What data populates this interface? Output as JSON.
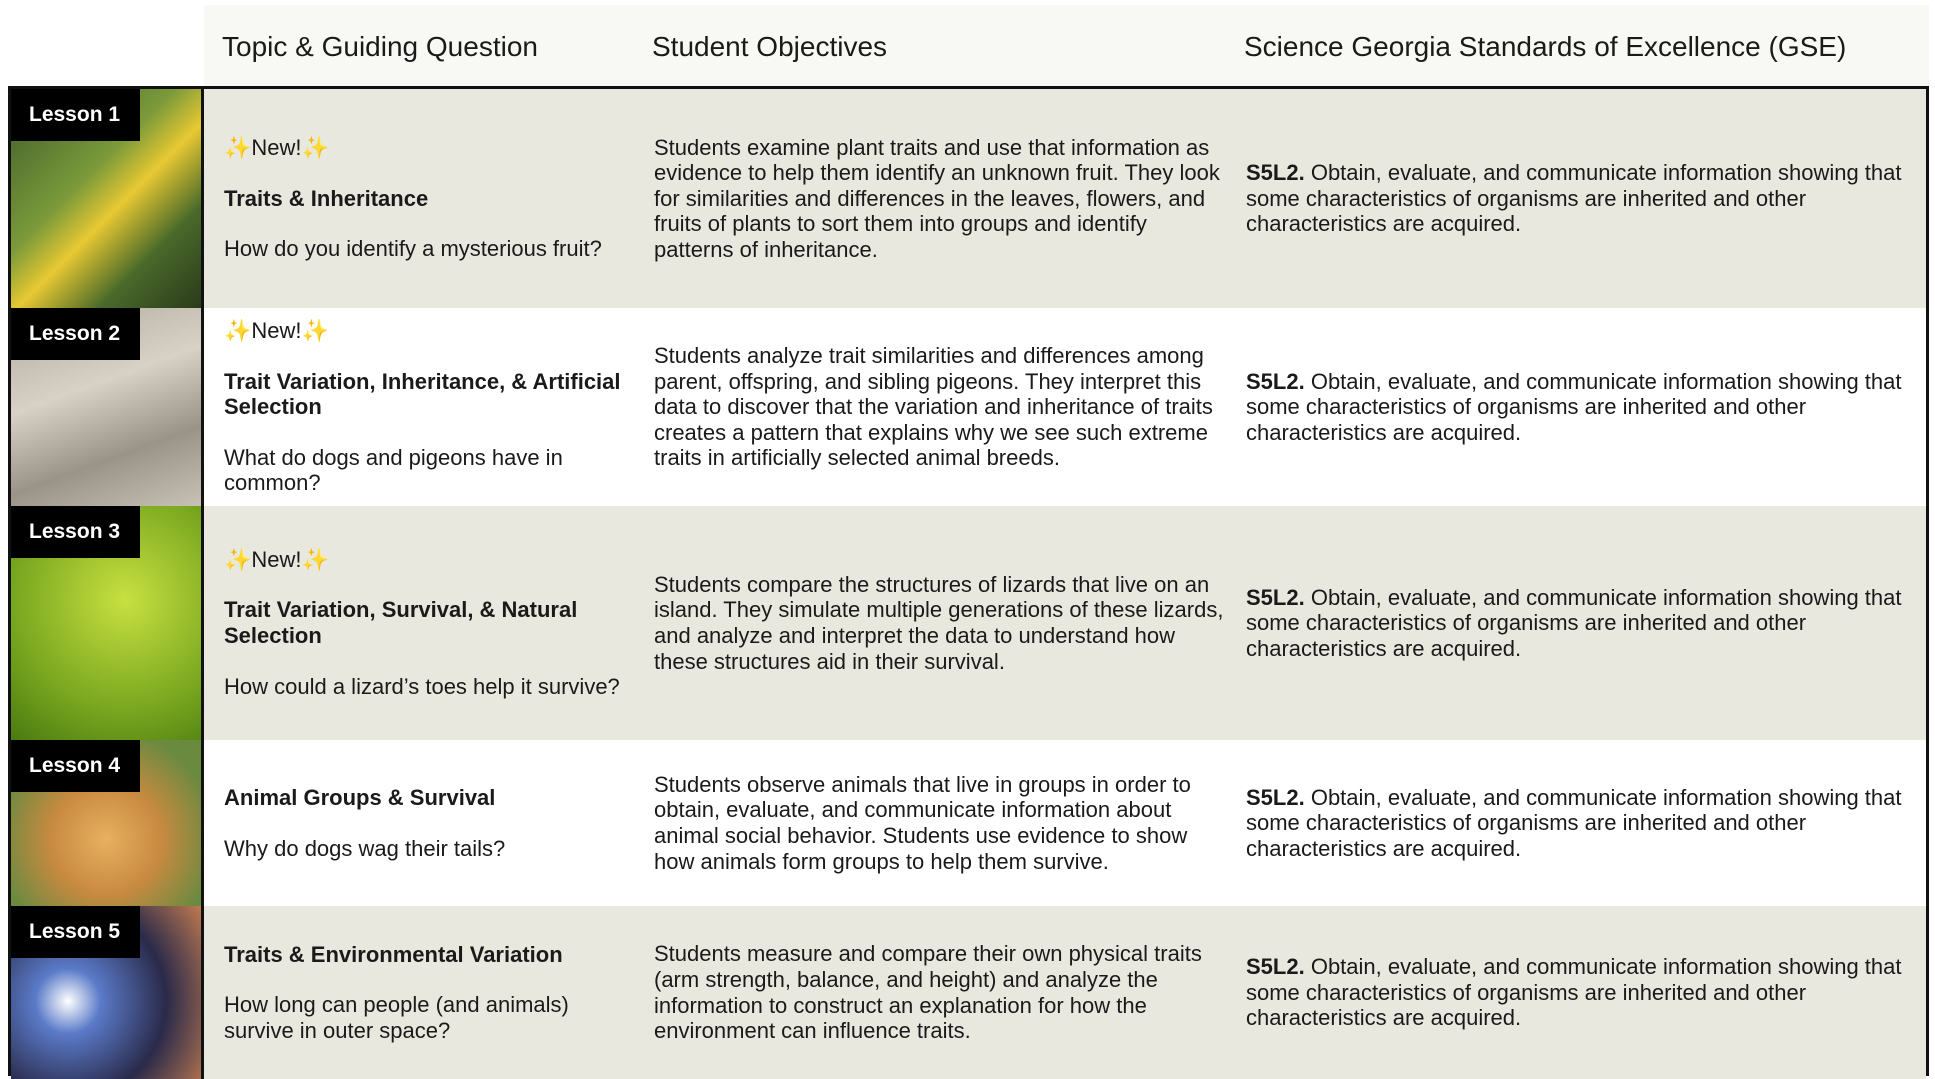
{
  "header": {
    "columns": [
      "Topic & Guiding Question",
      "Student Objectives",
      "Science Georgia Standards of Excellence (GSE)"
    ]
  },
  "rows": [
    {
      "lesson": "Lesson 1",
      "badge": "✨New!✨",
      "title": "Traits & Inheritance",
      "question": "How do you identify a mysterious fruit?",
      "objectives": "Students examine plant traits and use that information as evidence to help them identify an unknown fruit. They look for similarities and differences in the leaves, flowers, and fruits of plants to sort them into groups and identify patterns of inheritance.",
      "standard_code": "S5L2.",
      "standard_text": "Obtain, evaluate, and communicate information showing that some characteristics of organisms are inherited and other characteristics are acquired."
    },
    {
      "lesson": "Lesson 2",
      "badge": "✨New!✨",
      "title": "Trait Variation, Inheritance, & Artificial Selection",
      "question": "What do dogs and pigeons have in common?",
      "objectives": "Students analyze trait similarities and differences among parent, offspring, and sibling pigeons. They interpret this data to discover that the variation and inheritance of traits creates a pattern that explains why we see such extreme traits in artificially selected animal breeds.",
      "standard_code": "S5L2.",
      "standard_text": "Obtain, evaluate, and communicate information showing that some characteristics of organisms are inherited and other characteristics are acquired."
    },
    {
      "lesson": "Lesson 3",
      "badge": "✨New!✨",
      "title": "Trait Variation, Survival, & Natural Selection",
      "question": "How could a lizard’s toes help it survive?",
      "objectives": "Students compare the structures of lizards that live on an island. They simulate multiple generations of these lizards, and analyze and interpret the data to understand how these structures aid in their survival.",
      "standard_code": "S5L2.",
      "standard_text": "Obtain, evaluate, and communicate information showing that some characteristics of organisms are inherited and other characteristics are acquired."
    },
    {
      "lesson": "Lesson 4",
      "title": "Animal Groups & Survival",
      "question": "Why do dogs wag their tails?",
      "objectives": "Students observe animals that live in groups in order to obtain, evaluate, and communicate information about animal social behavior. Students use evidence to show how animals form groups to help them survive.",
      "standard_code": "S5L2.",
      "standard_text": "Obtain, evaluate, and communicate information showing that some characteristics of organisms are inherited and other characteristics are acquired."
    },
    {
      "lesson": "Lesson 5",
      "title": "Traits & Environmental Variation",
      "question": "How long can people (and animals) survive in outer space?",
      "objectives": "Students measure and compare their own physical traits (arm strength, balance, and height) and analyze the information to construct an explanation for how the environment can influence traits.",
      "standard_code": "S5L2.",
      "standard_text": "Obtain, evaluate, and communicate information showing that some characteristics of organisms are inherited and other characteristics are acquired."
    }
  ]
}
